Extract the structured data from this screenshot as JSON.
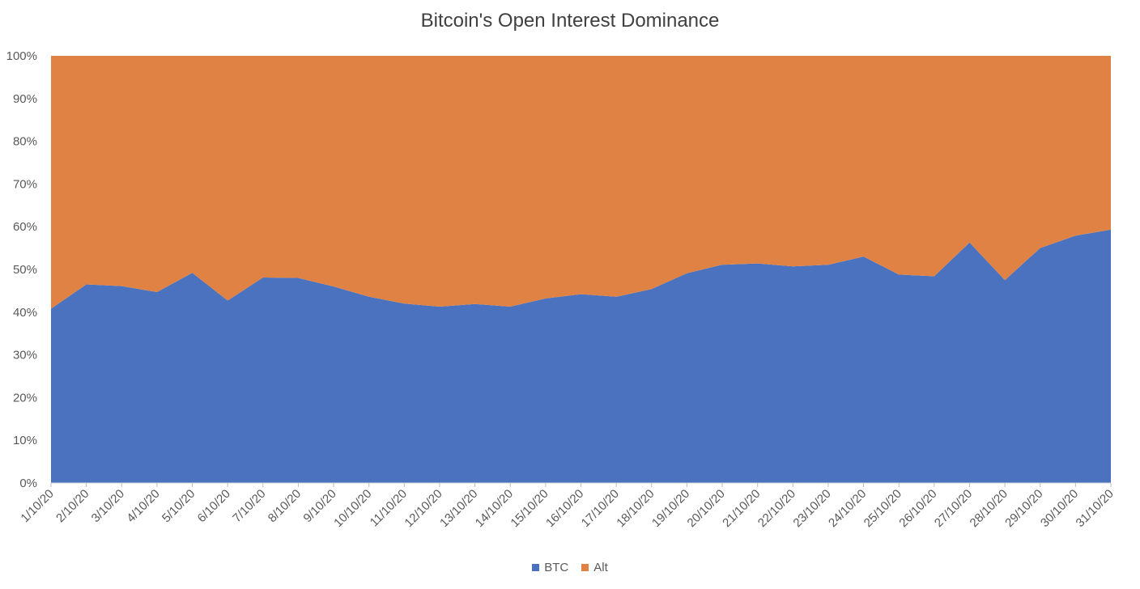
{
  "chart_data": {
    "type": "area",
    "stacked": true,
    "percent": true,
    "title": "Bitcoin's Open Interest Dominance",
    "xlabel": "",
    "ylabel": "",
    "ylim": [
      0,
      100
    ],
    "y_ticks": [
      "0%",
      "10%",
      "20%",
      "30%",
      "40%",
      "50%",
      "60%",
      "70%",
      "80%",
      "90%",
      "100%"
    ],
    "categories": [
      "1/10/20",
      "2/10/20",
      "3/10/20",
      "4/10/20",
      "5/10/20",
      "6/10/20",
      "7/10/20",
      "8/10/20",
      "9/10/20",
      "10/10/20",
      "11/10/20",
      "12/10/20",
      "13/10/20",
      "14/10/20",
      "15/10/20",
      "16/10/20",
      "17/10/20",
      "18/10/20",
      "19/10/20",
      "20/10/20",
      "21/10/20",
      "22/10/20",
      "23/10/20",
      "24/10/20",
      "25/10/20",
      "26/10/20",
      "27/10/20",
      "28/10/20",
      "29/10/20",
      "30/10/20",
      "31/10/20"
    ],
    "series": [
      {
        "name": "BTC",
        "color": "#4A72BF",
        "values": [
          40.8,
          46.5,
          46.1,
          44.7,
          49.2,
          42.7,
          48.1,
          48.0,
          46.0,
          43.6,
          42.0,
          41.3,
          41.9,
          41.3,
          43.2,
          44.2,
          43.6,
          45.4,
          49.1,
          51.1,
          51.4,
          50.7,
          51.1,
          53.0,
          48.8,
          48.4,
          56.3,
          47.5,
          55.0,
          57.9,
          59.3
        ]
      },
      {
        "name": "Alt",
        "color": "#E08244",
        "values": [
          59.2,
          53.5,
          53.9,
          55.3,
          50.8,
          57.3,
          51.9,
          52.0,
          54.0,
          56.4,
          58.0,
          58.7,
          58.1,
          58.7,
          56.8,
          55.8,
          56.4,
          54.6,
          50.9,
          48.9,
          48.6,
          49.3,
          48.9,
          47.0,
          51.2,
          51.6,
          43.7,
          52.5,
          45.0,
          42.1,
          40.7
        ]
      }
    ],
    "legend_position": "bottom",
    "grid": false
  }
}
